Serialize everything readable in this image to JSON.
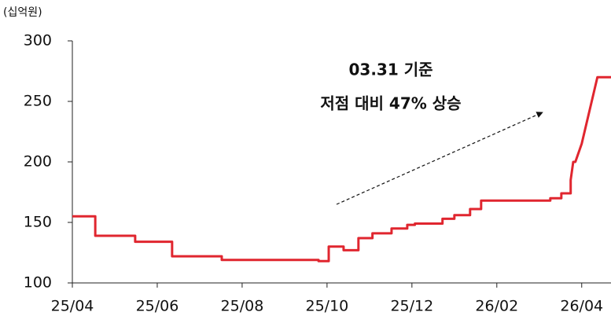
{
  "chart_data": {
    "type": "line",
    "unit_label": "(십억원)",
    "annotation": [
      "03.31 기준",
      "저점 대비 47% 상승"
    ],
    "x": [
      0,
      0.54,
      0.54,
      1.48,
      1.48,
      2.35,
      2.35,
      3.52,
      3.52,
      5.8,
      5.8,
      6.04,
      6.04,
      6.39,
      6.39,
      6.74,
      6.74,
      7.07,
      7.07,
      7.52,
      7.52,
      7.89,
      7.89,
      8.07,
      8.07,
      8.72,
      8.72,
      9.0,
      9.0,
      9.37,
      9.37,
      9.63,
      9.63,
      11.26,
      11.26,
      11.52,
      11.52,
      11.74,
      11.74,
      11.8,
      11.85,
      11.95,
      12.0,
      12.37,
      12.69
    ],
    "series": [
      {
        "color": "#e0262f",
        "values": [
          155,
          155,
          139,
          139,
          134,
          134,
          122,
          122,
          119,
          119,
          118,
          118,
          130,
          130,
          127,
          127,
          137,
          137,
          141,
          141,
          145,
          145,
          148,
          148,
          149,
          149,
          153,
          153,
          156,
          156,
          161,
          161,
          168,
          168,
          170,
          170,
          174,
          174,
          185,
          200,
          200,
          210,
          215,
          270,
          270
        ]
      }
    ],
    "xlim": [
      0,
      12.69
    ],
    "xticks": [
      {
        "value": 0,
        "label": "25/04"
      },
      {
        "value": 2,
        "label": "25/06"
      },
      {
        "value": 4,
        "label": "25/08"
      },
      {
        "value": 6,
        "label": "25/10"
      },
      {
        "value": 8,
        "label": "25/12"
      },
      {
        "value": 10,
        "label": "26/02"
      },
      {
        "value": 12,
        "label": "26/04"
      }
    ],
    "ylim": [
      100,
      300
    ],
    "yticks": [
      100,
      150,
      200,
      250,
      300
    ]
  }
}
